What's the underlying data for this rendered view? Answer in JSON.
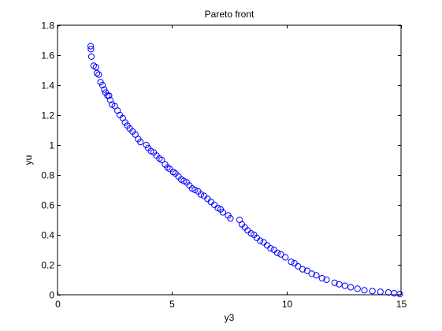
{
  "chart_data": {
    "type": "scatter",
    "title": "Pareto front",
    "xlabel": "y3",
    "ylabel": "yu",
    "xlim": [
      0,
      15
    ],
    "ylim": [
      0,
      1.8
    ],
    "xticks": [
      0,
      5,
      10,
      15
    ],
    "yticks": [
      0,
      0.2,
      0.4,
      0.6,
      0.8,
      1,
      1.2,
      1.4,
      1.6,
      1.8
    ],
    "xtick_labels": [
      "0",
      "5",
      "10",
      "15"
    ],
    "ytick_labels": [
      "0",
      "0.2",
      "0.4",
      "0.6",
      "0.8",
      "1",
      "1.2",
      "1.4",
      "1.6",
      "1.8"
    ],
    "grid": false,
    "legend": "none",
    "marker": "open-circle",
    "marker_color": "#0000ff",
    "series": [
      {
        "points": [
          {
            "x": 1.45,
            "y": 1.66
          },
          {
            "x": 1.46,
            "y": 1.64
          },
          {
            "x": 1.48,
            "y": 1.59
          },
          {
            "x": 1.58,
            "y": 1.53
          },
          {
            "x": 1.68,
            "y": 1.52
          },
          {
            "x": 1.72,
            "y": 1.48
          },
          {
            "x": 1.8,
            "y": 1.47
          },
          {
            "x": 1.88,
            "y": 1.42
          },
          {
            "x": 1.96,
            "y": 1.4
          },
          {
            "x": 2.04,
            "y": 1.37
          },
          {
            "x": 2.1,
            "y": 1.35
          },
          {
            "x": 2.18,
            "y": 1.33
          },
          {
            "x": 2.25,
            "y": 1.33
          },
          {
            "x": 2.3,
            "y": 1.3
          },
          {
            "x": 2.38,
            "y": 1.27
          },
          {
            "x": 2.5,
            "y": 1.26
          },
          {
            "x": 2.62,
            "y": 1.23
          },
          {
            "x": 2.72,
            "y": 1.2
          },
          {
            "x": 2.85,
            "y": 1.18
          },
          {
            "x": 2.95,
            "y": 1.15
          },
          {
            "x": 3.05,
            "y": 1.13
          },
          {
            "x": 3.15,
            "y": 1.11
          },
          {
            "x": 3.28,
            "y": 1.09
          },
          {
            "x": 3.4,
            "y": 1.07
          },
          {
            "x": 3.52,
            "y": 1.04
          },
          {
            "x": 3.62,
            "y": 1.02
          },
          {
            "x": 3.88,
            "y": 1.0
          },
          {
            "x": 3.96,
            "y": 0.98
          },
          {
            "x": 4.08,
            "y": 0.96
          },
          {
            "x": 4.2,
            "y": 0.95
          },
          {
            "x": 4.32,
            "y": 0.93
          },
          {
            "x": 4.45,
            "y": 0.91
          },
          {
            "x": 4.55,
            "y": 0.9
          },
          {
            "x": 4.7,
            "y": 0.87
          },
          {
            "x": 4.8,
            "y": 0.85
          },
          {
            "x": 4.9,
            "y": 0.84
          },
          {
            "x": 5.05,
            "y": 0.82
          },
          {
            "x": 5.15,
            "y": 0.81
          },
          {
            "x": 5.28,
            "y": 0.79
          },
          {
            "x": 5.4,
            "y": 0.77
          },
          {
            "x": 5.52,
            "y": 0.76
          },
          {
            "x": 5.64,
            "y": 0.75
          },
          {
            "x": 5.76,
            "y": 0.73
          },
          {
            "x": 5.88,
            "y": 0.71
          },
          {
            "x": 6.0,
            "y": 0.7
          },
          {
            "x": 6.14,
            "y": 0.69
          },
          {
            "x": 6.26,
            "y": 0.67
          },
          {
            "x": 6.4,
            "y": 0.66
          },
          {
            "x": 6.55,
            "y": 0.64
          },
          {
            "x": 6.7,
            "y": 0.62
          },
          {
            "x": 6.85,
            "y": 0.6
          },
          {
            "x": 7.0,
            "y": 0.58
          },
          {
            "x": 7.12,
            "y": 0.57
          },
          {
            "x": 7.22,
            "y": 0.55
          },
          {
            "x": 7.45,
            "y": 0.53
          },
          {
            "x": 7.55,
            "y": 0.51
          },
          {
            "x": 7.95,
            "y": 0.5
          },
          {
            "x": 8.05,
            "y": 0.47
          },
          {
            "x": 8.18,
            "y": 0.45
          },
          {
            "x": 8.3,
            "y": 0.43
          },
          {
            "x": 8.45,
            "y": 0.41
          },
          {
            "x": 8.58,
            "y": 0.4
          },
          {
            "x": 8.7,
            "y": 0.38
          },
          {
            "x": 8.85,
            "y": 0.36
          },
          {
            "x": 9.0,
            "y": 0.35
          },
          {
            "x": 9.15,
            "y": 0.33
          },
          {
            "x": 9.3,
            "y": 0.31
          },
          {
            "x": 9.45,
            "y": 0.3
          },
          {
            "x": 9.6,
            "y": 0.28
          },
          {
            "x": 9.75,
            "y": 0.27
          },
          {
            "x": 9.95,
            "y": 0.25
          },
          {
            "x": 10.2,
            "y": 0.22
          },
          {
            "x": 10.35,
            "y": 0.21
          },
          {
            "x": 10.5,
            "y": 0.19
          },
          {
            "x": 10.7,
            "y": 0.17
          },
          {
            "x": 10.9,
            "y": 0.16
          },
          {
            "x": 11.1,
            "y": 0.14
          },
          {
            "x": 11.3,
            "y": 0.13
          },
          {
            "x": 11.55,
            "y": 0.11
          },
          {
            "x": 11.75,
            "y": 0.1
          },
          {
            "x": 12.1,
            "y": 0.08
          },
          {
            "x": 12.3,
            "y": 0.07
          },
          {
            "x": 12.55,
            "y": 0.06
          },
          {
            "x": 12.8,
            "y": 0.05
          },
          {
            "x": 13.1,
            "y": 0.04
          },
          {
            "x": 13.4,
            "y": 0.03
          },
          {
            "x": 13.75,
            "y": 0.025
          },
          {
            "x": 14.1,
            "y": 0.02
          },
          {
            "x": 14.45,
            "y": 0.015
          },
          {
            "x": 14.7,
            "y": 0.01
          },
          {
            "x": 14.95,
            "y": 0.005
          }
        ]
      }
    ]
  }
}
